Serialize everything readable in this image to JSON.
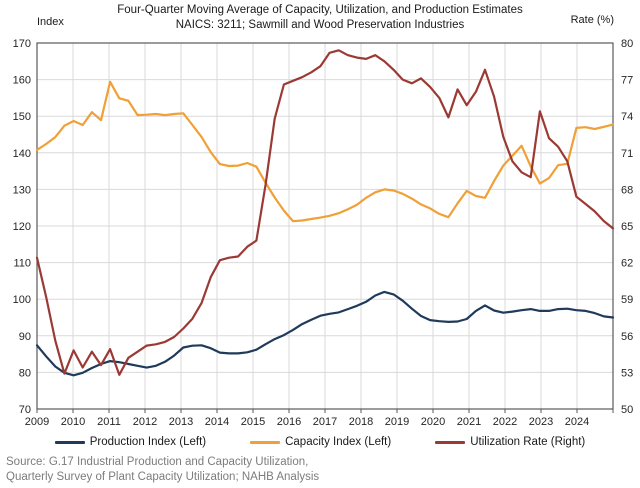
{
  "chart_data": {
    "type": "line",
    "title": "Four-Quarter Moving Average of Capacity, Utilization, and Production Estimates",
    "subtitle": "NAICS: 3211; Sawmill and Wood Preservation Industries",
    "left_axis": {
      "label": "Index",
      "min": 70,
      "max": 170,
      "ticks": [
        170,
        160,
        150,
        140,
        130,
        120,
        110,
        100,
        90,
        80,
        70
      ]
    },
    "right_axis": {
      "label": "Rate (%)",
      "min": 50,
      "max": 80,
      "ticks": [
        80,
        77,
        74,
        71,
        68,
        65,
        62,
        59,
        56,
        53,
        50
      ]
    },
    "x_axis": {
      "years": [
        "2009",
        "2010",
        "2011",
        "2012",
        "2013",
        "2014",
        "2015",
        "2016",
        "2017",
        "2018",
        "2019",
        "2020",
        "2021",
        "2022",
        "2023",
        "2024"
      ],
      "points_per_year": 4
    },
    "grid": true,
    "legend_position": "bottom",
    "series": [
      {
        "name": "Production Index (Left)",
        "axis": "left",
        "color": "#1F3A5A",
        "values": [
          87.4,
          84.4,
          81.6,
          79.9,
          79.2,
          79.9,
          81.2,
          82.3,
          83.1,
          82.8,
          82.3,
          81.8,
          81.3,
          81.8,
          82.9,
          84.6,
          86.8,
          87.3,
          87.4,
          86.6,
          85.4,
          85.2,
          85.2,
          85.5,
          86.2,
          87.7,
          89.1,
          90.2,
          91.6,
          93.2,
          94.4,
          95.5,
          96.0,
          96.4,
          97.3,
          98.2,
          99.3,
          101.0,
          102.0,
          101.3,
          99.6,
          97.4,
          95.4,
          94.3,
          94.0,
          93.8,
          93.9,
          94.6,
          96.8,
          98.3,
          96.9,
          96.3,
          96.6,
          97.0,
          97.3,
          96.8,
          96.8,
          97.3,
          97.4,
          97.0,
          96.8,
          96.2,
          95.3,
          95.0
        ]
      },
      {
        "name": "Capacity Index (Left)",
        "axis": "left",
        "color": "#F0A036",
        "values": [
          140.8,
          142.4,
          144.3,
          147.4,
          148.7,
          147.6,
          151.1,
          148.9,
          159.4,
          154.9,
          154.2,
          150.3,
          150.4,
          150.6,
          150.3,
          150.6,
          150.8,
          147.6,
          144.3,
          140.2,
          136.9,
          136.4,
          136.5,
          137.2,
          136.2,
          131.8,
          127.8,
          124.2,
          121.3,
          121.5,
          121.9,
          122.3,
          122.8,
          123.5,
          124.6,
          125.8,
          127.7,
          129.2,
          130.0,
          129.7,
          128.8,
          127.5,
          125.9,
          124.8,
          123.3,
          122.4,
          126.2,
          129.6,
          128.2,
          127.7,
          132.3,
          136.5,
          139.2,
          141.9,
          136.3,
          131.6,
          133.1,
          136.6,
          137.0,
          146.8,
          147.0,
          146.5,
          147.1,
          147.7
        ]
      },
      {
        "name": "Utilization Rate (Right)",
        "axis": "right",
        "color": "#9B3A34",
        "values": [
          62.4,
          59.2,
          55.6,
          52.9,
          54.8,
          53.4,
          54.7,
          53.6,
          54.9,
          52.8,
          54.2,
          54.7,
          55.2,
          55.3,
          55.5,
          55.9,
          56.6,
          57.4,
          58.7,
          60.8,
          62.2,
          62.4,
          62.5,
          63.3,
          63.8,
          68.4,
          73.8,
          76.6,
          76.9,
          77.2,
          77.6,
          78.1,
          79.2,
          79.4,
          79.0,
          78.8,
          78.7,
          79.0,
          78.5,
          77.8,
          77.0,
          76.7,
          77.1,
          76.4,
          75.5,
          73.9,
          76.2,
          74.9,
          76.0,
          77.8,
          75.6,
          72.3,
          70.3,
          69.4,
          69.0,
          74.4,
          72.2,
          71.5,
          70.3,
          67.4,
          66.8,
          66.2,
          65.4,
          64.8
        ]
      }
    ]
  },
  "source": {
    "line1": "Source: G.17 Industrial Production and Capacity Utilization,",
    "line2": "Quarterly Survey of Plant Capacity Utilization; NAHB Analysis"
  },
  "colors": {
    "grid": "#D9D9D9",
    "axis": "#595959",
    "tick_text": "#262626",
    "title_text": "#1a1a1a",
    "source_text": "#7C7C7C"
  }
}
